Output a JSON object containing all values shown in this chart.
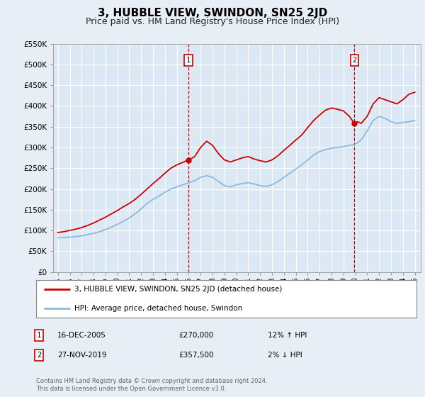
{
  "title": "3, HUBBLE VIEW, SWINDON, SN25 2JD",
  "subtitle": "Price paid vs. HM Land Registry's House Price Index (HPI)",
  "title_fontsize": 11,
  "subtitle_fontsize": 9,
  "bg_color": "#e8eef5",
  "plot_bg": "#dce8f4",
  "line1_color": "#cc0000",
  "line2_color": "#88bbdd",
  "ylim": [
    0,
    550000
  ],
  "yticks": [
    0,
    50000,
    100000,
    150000,
    200000,
    250000,
    300000,
    350000,
    400000,
    450000,
    500000,
    550000
  ],
  "xlim_start": 1994.6,
  "xlim_end": 2025.5,
  "sale1_x": 2005.96,
  "sale1_y": 270000,
  "sale2_x": 2019.92,
  "sale2_y": 357500,
  "legend_label1": "3, HUBBLE VIEW, SWINDON, SN25 2JD (detached house)",
  "legend_label2": "HPI: Average price, detached house, Swindon",
  "note1_label": "1",
  "note1_date": "16-DEC-2005",
  "note1_price": "£270,000",
  "note1_hpi": "12% ↑ HPI",
  "note2_label": "2",
  "note2_date": "27-NOV-2019",
  "note2_price": "£357,500",
  "note2_hpi": "2% ↓ HPI",
  "footer": "Contains HM Land Registry data © Crown copyright and database right 2024.\nThis data is licensed under the Open Government Licence v3.0."
}
